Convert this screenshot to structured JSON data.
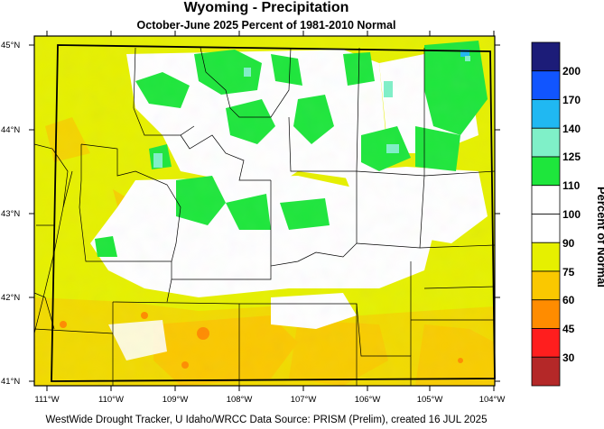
{
  "title": "Wyoming - Precipitation",
  "subtitle": "October-June 2025  Percent of 1981-2010 Normal",
  "footer": "WestWide Drought Tracker, U Idaho/WRCC Data Source: PRISM (Prelim), created 16 JUL 2025",
  "colorbar": {
    "title": "Percent of Normal",
    "labels": [
      "200",
      "170",
      "140",
      "125",
      "110",
      "100",
      "90",
      "75",
      "60",
      "45",
      "30"
    ],
    "colors": [
      "#1c1c78",
      "#1155ff",
      "#20b8f2",
      "#7ff0c8",
      "#1ee63c",
      "#ffffff",
      "#ffffff",
      "#e6f000",
      "#fac800",
      "#ff8c00",
      "#ff1e1e",
      "#b42828"
    ]
  },
  "chart_data": {
    "type": "heatmap",
    "title": "Wyoming - Precipitation",
    "subtitle": "October-June 2025  Percent of 1981-2010 Normal",
    "lat_labels": [
      "45°N",
      "44°N",
      "43°N",
      "42°N",
      "41°N"
    ],
    "lon_labels": [
      "111°W",
      "110°W",
      "109°W",
      "108°W",
      "107°W",
      "106°W",
      "105°W",
      "104°W"
    ],
    "lat_range": [
      40.95,
      45.05
    ],
    "lon_range": [
      -111.15,
      -103.95
    ],
    "legend_placement": "right",
    "value_unit": "percent of normal"
  }
}
